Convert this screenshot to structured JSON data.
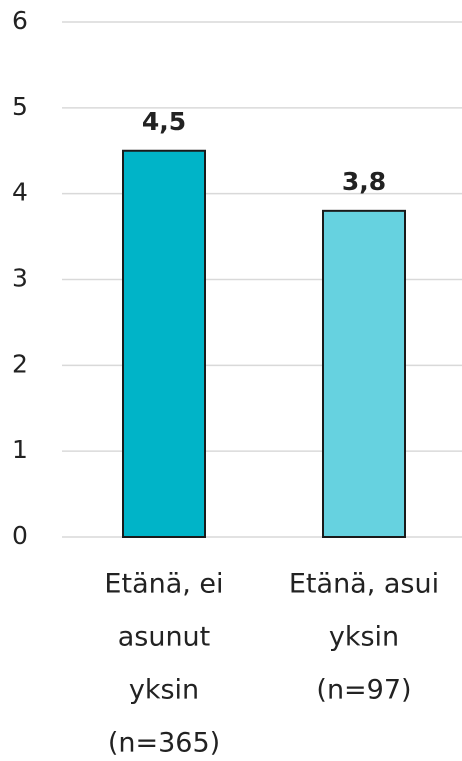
{
  "chart_data": {
    "type": "bar",
    "categories": [
      [
        "Etänä, ei",
        "asunut",
        "yksin",
        "(n=365)"
      ],
      [
        "Etänä, asui",
        "yksin",
        "(n=97)"
      ]
    ],
    "values": [
      4.5,
      3.8
    ],
    "value_labels": [
      "4,5",
      "3,8"
    ],
    "colors": [
      "#00b4c8",
      "#66d2e0"
    ],
    "ylim": [
      0,
      6
    ],
    "yticks": [
      0,
      1,
      2,
      3,
      4,
      5,
      6
    ],
    "grid": true
  }
}
